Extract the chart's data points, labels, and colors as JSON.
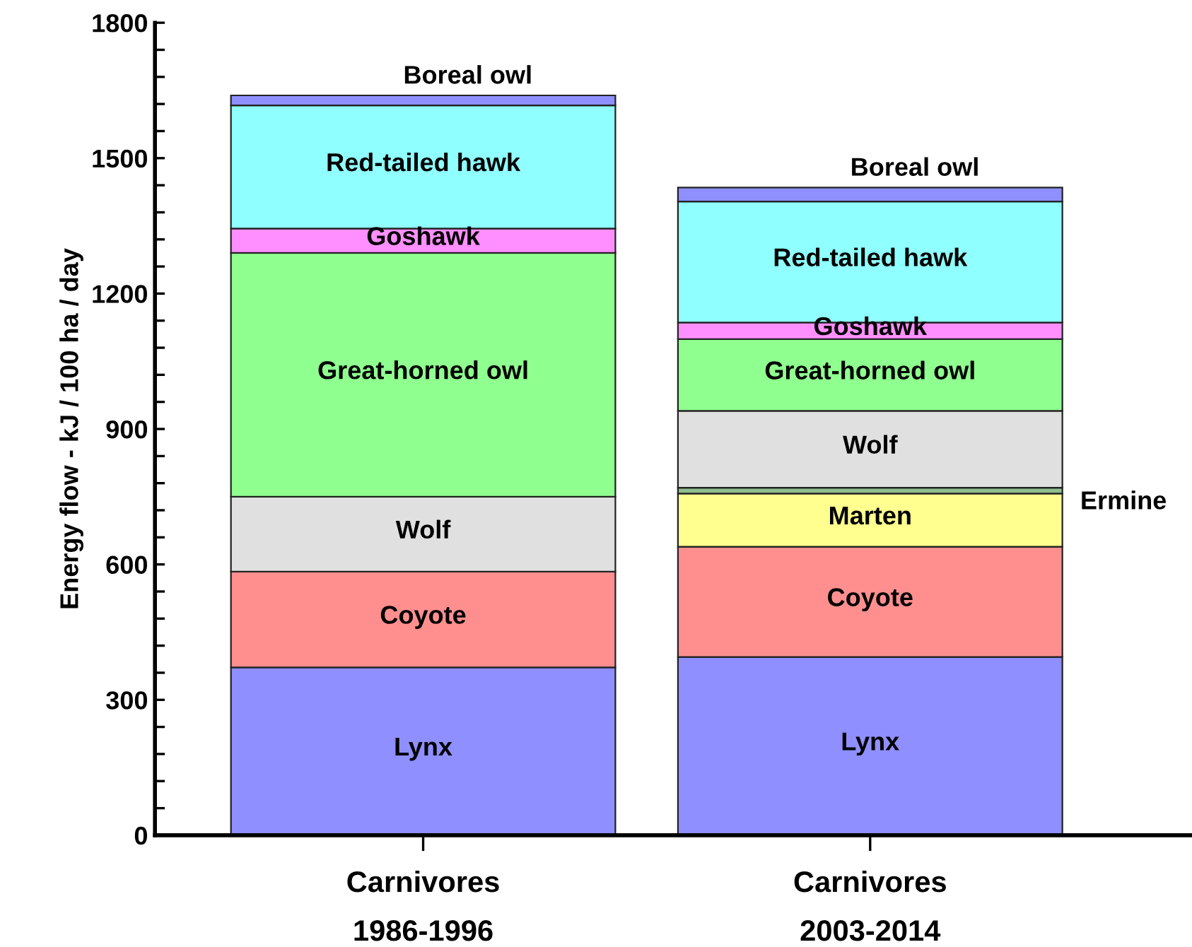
{
  "chart_data": {
    "type": "bar",
    "stacked": true,
    "ylabel": "Energy flow - kJ / 100 ha / day",
    "categories": [
      "Carnivores\n1986-1996",
      "Carnivores\n2003-2014"
    ],
    "series": [
      {
        "name": "Lynx",
        "color": "#8f8fff",
        "values": [
          372,
          395
        ]
      },
      {
        "name": "Coyote",
        "color": "#ff8f8f",
        "values": [
          212,
          244
        ]
      },
      {
        "name": "Marten",
        "color": "#ffff8f",
        "values": [
          null,
          118
        ]
      },
      {
        "name": "Ermine",
        "color": "#8fbf8f",
        "values": [
          null,
          13
        ]
      },
      {
        "name": "Wolf",
        "color": "#e0e0e0",
        "values": [
          166,
          170
        ]
      },
      {
        "name": "Great-horned owl",
        "color": "#8fff8f",
        "values": [
          540,
          159
        ]
      },
      {
        "name": "Goshawk",
        "color": "#ff8fff",
        "values": [
          54,
          37
        ]
      },
      {
        "name": "Red-tailed hawk",
        "color": "#8fffff",
        "values": [
          273,
          268
        ]
      },
      {
        "name": "Boreal owl",
        "color": "#8f8fff",
        "values": [
          22,
          31
        ]
      }
    ],
    "ylim": [
      0,
      1800
    ],
    "yticks": [
      0,
      {
        "value": 60,
        "label": null
      },
      {
        "value": 120,
        "label": null
      },
      {
        "value": 180,
        "label": null
      },
      {
        "value": 240,
        "label": null
      },
      300,
      {
        "value": 360,
        "label": null
      },
      {
        "value": 420,
        "label": null
      },
      {
        "value": 480,
        "label": null
      },
      {
        "value": 540,
        "label": null
      },
      600,
      {
        "value": 660,
        "label": null
      },
      {
        "value": 720,
        "label": null
      },
      {
        "value": 780,
        "label": null
      },
      {
        "value": 840,
        "label": null
      },
      900,
      {
        "value": 960,
        "label": null
      },
      {
        "value": 1020,
        "label": null
      },
      {
        "value": 1080,
        "label": null
      },
      {
        "value": 1140,
        "label": null
      },
      1200,
      {
        "value": 1260,
        "label": null
      },
      {
        "value": 1320,
        "label": null
      },
      {
        "value": 1380,
        "label": null
      },
      {
        "value": 1440,
        "label": null
      },
      1500,
      {
        "value": 1560,
        "label": null
      },
      {
        "value": 1620,
        "label": null
      },
      {
        "value": 1680,
        "label": null
      },
      {
        "value": 1740,
        "label": null
      },
      1800
    ],
    "grid": false,
    "legend": false
  }
}
